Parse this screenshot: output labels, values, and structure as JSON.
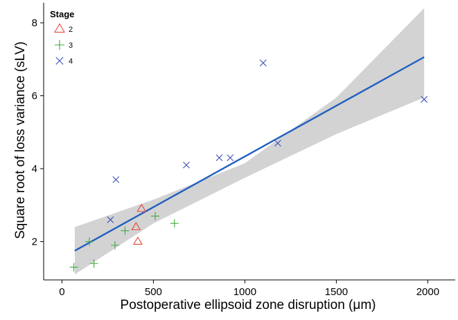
{
  "chart_data": {
    "type": "scatter",
    "title": "",
    "xlabel": "Postoperative ellipsoid zone disruption (μm)",
    "ylabel": "Square root of loss variance (sLV)",
    "xlim": [
      -100,
      2150
    ],
    "ylim": [
      0.95,
      8.55
    ],
    "xticks": [
      0,
      500,
      1000,
      1500,
      2000
    ],
    "yticks": [
      2,
      4,
      6,
      8
    ],
    "grid": false,
    "legend": {
      "title": "Stage",
      "placement": "top-left",
      "entries": [
        {
          "label": "2",
          "marker": "triangle",
          "color": "#E8473B"
        },
        {
          "label": "3",
          "marker": "plus",
          "color": "#3DAA3D"
        },
        {
          "label": "4",
          "marker": "cross",
          "color": "#3B4FB5"
        }
      ]
    },
    "series": [
      {
        "name": "2",
        "marker": "triangle",
        "color": "#E8473B",
        "points": [
          [
            405,
            2.4
          ],
          [
            435,
            2.9
          ],
          [
            415,
            2.0
          ]
        ]
      },
      {
        "name": "3",
        "marker": "plus",
        "color": "#3DAA3D",
        "points": [
          [
            65,
            1.3
          ],
          [
            150,
            2.0
          ],
          [
            175,
            1.4
          ],
          [
            290,
            1.9
          ],
          [
            345,
            2.3
          ],
          [
            510,
            2.7
          ],
          [
            615,
            2.5
          ]
        ]
      },
      {
        "name": "4",
        "marker": "cross",
        "color": "#3B4FB5",
        "points": [
          [
            265,
            2.6
          ],
          [
            295,
            3.7
          ],
          [
            680,
            4.1
          ],
          [
            860,
            4.3
          ],
          [
            920,
            4.3
          ],
          [
            1100,
            6.9
          ],
          [
            1180,
            4.7
          ],
          [
            1980,
            5.9
          ]
        ]
      }
    ],
    "fit": {
      "color": "#1F5FBF",
      "band_color": "#D3D3D3",
      "points": [
        [
          70,
          1.75
        ],
        [
          1980,
          7.06
        ]
      ],
      "upper": [
        [
          70,
          2.4
        ],
        [
          500,
          3.15
        ],
        [
          1000,
          4.15
        ],
        [
          1500,
          5.95
        ],
        [
          1980,
          8.4
        ]
      ],
      "lower": [
        [
          70,
          1.1
        ],
        [
          500,
          2.5
        ],
        [
          1000,
          3.75
        ],
        [
          1500,
          4.95
        ],
        [
          1980,
          5.95
        ]
      ]
    }
  }
}
